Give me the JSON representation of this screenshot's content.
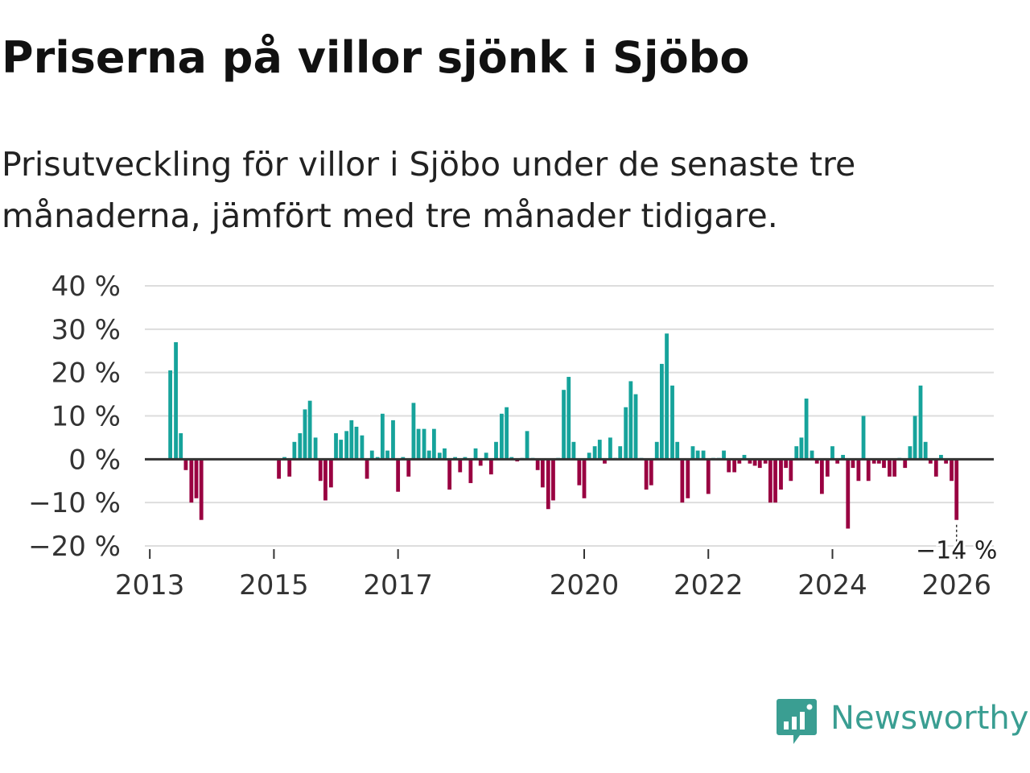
{
  "title": "Priserna på villor sjönk i Sjöbo",
  "subtitle": "Prisutveckling för villor i Sjöbo under de senaste tre månaderna, jämfört med tre månader tidigare.",
  "brand": {
    "name": "Newsworthy",
    "color": "#3a9e92"
  },
  "colors": {
    "positive": "#16a39b",
    "negative": "#990041",
    "grid": "#dddddd",
    "zero_line": "#333333"
  },
  "chart_data": {
    "type": "bar",
    "title": "Priserna på villor sjönk i Sjöbo",
    "xlabel": "",
    "ylabel": "",
    "ylim": [
      -20,
      40
    ],
    "y_ticks": [
      {
        "value": 40,
        "label": "40 %"
      },
      {
        "value": 30,
        "label": "30 %"
      },
      {
        "value": 20,
        "label": "20 %"
      },
      {
        "value": 10,
        "label": "10 %"
      },
      {
        "value": 0,
        "label": "0 %"
      },
      {
        "value": -10,
        "label": "−10 %"
      },
      {
        "value": -20,
        "label": "−20 %"
      }
    ],
    "x_start": 2012.92,
    "x_end": 2026.6,
    "x_ticks": [
      {
        "value": 2013,
        "label": "2013"
      },
      {
        "value": 2015,
        "label": "2015"
      },
      {
        "value": 2017,
        "label": "2017"
      },
      {
        "value": 2020,
        "label": "2020"
      },
      {
        "value": 2022,
        "label": "2022"
      },
      {
        "value": 2024,
        "label": "2024"
      },
      {
        "value": 2026,
        "label": "2026"
      }
    ],
    "grid": true,
    "annotation": {
      "x": 2026.0,
      "value": -14,
      "label": "−14 %"
    },
    "bars": [
      {
        "x": 2013.33,
        "value": 20.5
      },
      {
        "x": 2013.42,
        "value": 27
      },
      {
        "x": 2013.5,
        "value": 6
      },
      {
        "x": 2013.58,
        "value": -2.5
      },
      {
        "x": 2013.67,
        "value": -10
      },
      {
        "x": 2013.75,
        "value": -9
      },
      {
        "x": 2013.83,
        "value": -14
      },
      {
        "x": 2015.08,
        "value": -4.5
      },
      {
        "x": 2015.17,
        "value": 0.5
      },
      {
        "x": 2015.25,
        "value": -4
      },
      {
        "x": 2015.33,
        "value": 4
      },
      {
        "x": 2015.42,
        "value": 6
      },
      {
        "x": 2015.5,
        "value": 11.5
      },
      {
        "x": 2015.58,
        "value": 13.5
      },
      {
        "x": 2015.67,
        "value": 5
      },
      {
        "x": 2015.75,
        "value": -5
      },
      {
        "x": 2015.83,
        "value": -9.5
      },
      {
        "x": 2015.92,
        "value": -6.5
      },
      {
        "x": 2016.0,
        "value": 6
      },
      {
        "x": 2016.08,
        "value": 4.5
      },
      {
        "x": 2016.17,
        "value": 6.5
      },
      {
        "x": 2016.25,
        "value": 9
      },
      {
        "x": 2016.33,
        "value": 7.5
      },
      {
        "x": 2016.42,
        "value": 5.5
      },
      {
        "x": 2016.5,
        "value": -4.5
      },
      {
        "x": 2016.58,
        "value": 2
      },
      {
        "x": 2016.67,
        "value": 0.5
      },
      {
        "x": 2016.75,
        "value": 10.5
      },
      {
        "x": 2016.83,
        "value": 2
      },
      {
        "x": 2016.92,
        "value": 9
      },
      {
        "x": 2017.0,
        "value": -7.5
      },
      {
        "x": 2017.08,
        "value": 0.5
      },
      {
        "x": 2017.17,
        "value": -4
      },
      {
        "x": 2017.25,
        "value": 13
      },
      {
        "x": 2017.33,
        "value": 7
      },
      {
        "x": 2017.42,
        "value": 7
      },
      {
        "x": 2017.5,
        "value": 2
      },
      {
        "x": 2017.58,
        "value": 7
      },
      {
        "x": 2017.67,
        "value": 1.5
      },
      {
        "x": 2017.75,
        "value": 2.5
      },
      {
        "x": 2017.83,
        "value": -7
      },
      {
        "x": 2017.92,
        "value": 0.5
      },
      {
        "x": 2018.0,
        "value": -3
      },
      {
        "x": 2018.08,
        "value": 0.5
      },
      {
        "x": 2018.17,
        "value": -5.5
      },
      {
        "x": 2018.25,
        "value": 2.5
      },
      {
        "x": 2018.33,
        "value": -1.5
      },
      {
        "x": 2018.42,
        "value": 1.5
      },
      {
        "x": 2018.5,
        "value": -3.5
      },
      {
        "x": 2018.58,
        "value": 4
      },
      {
        "x": 2018.67,
        "value": 10.5
      },
      {
        "x": 2018.75,
        "value": 12
      },
      {
        "x": 2018.83,
        "value": 0.5
      },
      {
        "x": 2018.92,
        "value": -0.5
      },
      {
        "x": 2019.0,
        "value": 0.3
      },
      {
        "x": 2019.08,
        "value": 6.5
      },
      {
        "x": 2019.17,
        "value": 0.3
      },
      {
        "x": 2019.25,
        "value": -2.5
      },
      {
        "x": 2019.33,
        "value": -6.5
      },
      {
        "x": 2019.42,
        "value": -11.5
      },
      {
        "x": 2019.5,
        "value": -9.5
      },
      {
        "x": 2019.58,
        "value": 0.3
      },
      {
        "x": 2019.67,
        "value": 16
      },
      {
        "x": 2019.75,
        "value": 19
      },
      {
        "x": 2019.83,
        "value": 4
      },
      {
        "x": 2019.92,
        "value": -6
      },
      {
        "x": 2020.0,
        "value": -9
      },
      {
        "x": 2020.08,
        "value": 1.5
      },
      {
        "x": 2020.17,
        "value": 3
      },
      {
        "x": 2020.25,
        "value": 4.5
      },
      {
        "x": 2020.33,
        "value": -1
      },
      {
        "x": 2020.42,
        "value": 5
      },
      {
        "x": 2020.5,
        "value": 0.3
      },
      {
        "x": 2020.58,
        "value": 3
      },
      {
        "x": 2020.67,
        "value": 12
      },
      {
        "x": 2020.75,
        "value": 18
      },
      {
        "x": 2020.83,
        "value": 15
      },
      {
        "x": 2020.92,
        "value": 0.3
      },
      {
        "x": 2021.0,
        "value": -7
      },
      {
        "x": 2021.08,
        "value": -6
      },
      {
        "x": 2021.17,
        "value": 4
      },
      {
        "x": 2021.25,
        "value": 22
      },
      {
        "x": 2021.33,
        "value": 29
      },
      {
        "x": 2021.42,
        "value": 17
      },
      {
        "x": 2021.5,
        "value": 4
      },
      {
        "x": 2021.58,
        "value": -10
      },
      {
        "x": 2021.67,
        "value": -9
      },
      {
        "x": 2021.75,
        "value": 3
      },
      {
        "x": 2021.83,
        "value": 2
      },
      {
        "x": 2021.92,
        "value": 2
      },
      {
        "x": 2022.0,
        "value": -8
      },
      {
        "x": 2022.08,
        "value": 0.3
      },
      {
        "x": 2022.17,
        "value": 0.3
      },
      {
        "x": 2022.25,
        "value": 2
      },
      {
        "x": 2022.33,
        "value": -3
      },
      {
        "x": 2022.42,
        "value": -3
      },
      {
        "x": 2022.5,
        "value": -1
      },
      {
        "x": 2022.58,
        "value": 1
      },
      {
        "x": 2022.67,
        "value": -1
      },
      {
        "x": 2022.75,
        "value": -1.5
      },
      {
        "x": 2022.83,
        "value": -2
      },
      {
        "x": 2022.92,
        "value": -1
      },
      {
        "x": 2023.0,
        "value": -10
      },
      {
        "x": 2023.08,
        "value": -10
      },
      {
        "x": 2023.17,
        "value": -7
      },
      {
        "x": 2023.25,
        "value": -2
      },
      {
        "x": 2023.33,
        "value": -5
      },
      {
        "x": 2023.42,
        "value": 3
      },
      {
        "x": 2023.5,
        "value": 5
      },
      {
        "x": 2023.58,
        "value": 14
      },
      {
        "x": 2023.67,
        "value": 2
      },
      {
        "x": 2023.75,
        "value": -1
      },
      {
        "x": 2023.83,
        "value": -8
      },
      {
        "x": 2023.92,
        "value": -4
      },
      {
        "x": 2024.0,
        "value": 3
      },
      {
        "x": 2024.08,
        "value": -1
      },
      {
        "x": 2024.17,
        "value": 1
      },
      {
        "x": 2024.25,
        "value": -16
      },
      {
        "x": 2024.33,
        "value": -2
      },
      {
        "x": 2024.42,
        "value": -5
      },
      {
        "x": 2024.5,
        "value": 10
      },
      {
        "x": 2024.58,
        "value": -5
      },
      {
        "x": 2024.67,
        "value": -1
      },
      {
        "x": 2024.75,
        "value": -1
      },
      {
        "x": 2024.83,
        "value": -2
      },
      {
        "x": 2024.92,
        "value": -4
      },
      {
        "x": 2025.0,
        "value": -4
      },
      {
        "x": 2025.08,
        "value": 0.3
      },
      {
        "x": 2025.17,
        "value": -2
      },
      {
        "x": 2025.25,
        "value": 3
      },
      {
        "x": 2025.33,
        "value": 10
      },
      {
        "x": 2025.42,
        "value": 17
      },
      {
        "x": 2025.5,
        "value": 4
      },
      {
        "x": 2025.58,
        "value": -1
      },
      {
        "x": 2025.67,
        "value": -4
      },
      {
        "x": 2025.75,
        "value": 1
      },
      {
        "x": 2025.83,
        "value": -1
      },
      {
        "x": 2025.92,
        "value": -5
      },
      {
        "x": 2026.0,
        "value": -14
      }
    ]
  }
}
